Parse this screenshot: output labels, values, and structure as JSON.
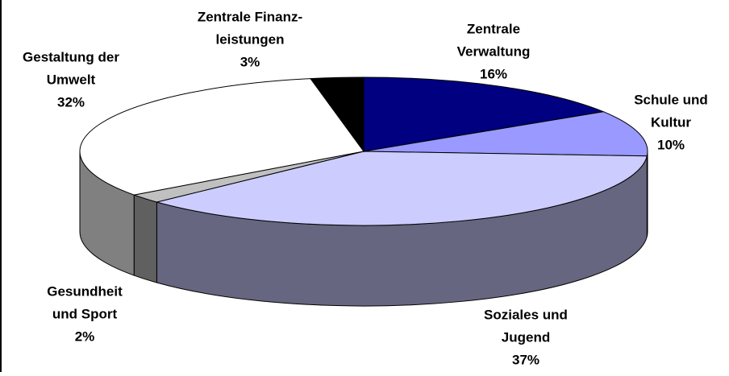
{
  "chart_data": {
    "type": "pie3d",
    "categories": [
      [
        "Zentrale",
        "Verwaltung"
      ],
      [
        "Schule und",
        "Kultur"
      ],
      [
        "Soziales und",
        "Jugend"
      ],
      [
        "Gesundheit",
        "und Sport"
      ],
      [
        "Gestaltung der",
        "Umwelt"
      ],
      [
        "Zentrale Finanz-",
        "leistungen"
      ]
    ],
    "values": [
      16,
      10,
      37,
      2,
      32,
      3
    ],
    "value_labels": [
      "16%",
      "10%",
      "37%",
      "2%",
      "32%",
      "3%"
    ],
    "colors": [
      "#000080",
      "#9999ff",
      "#ccccff",
      "#c0c0c0",
      "#ffffff",
      "#000000"
    ]
  }
}
